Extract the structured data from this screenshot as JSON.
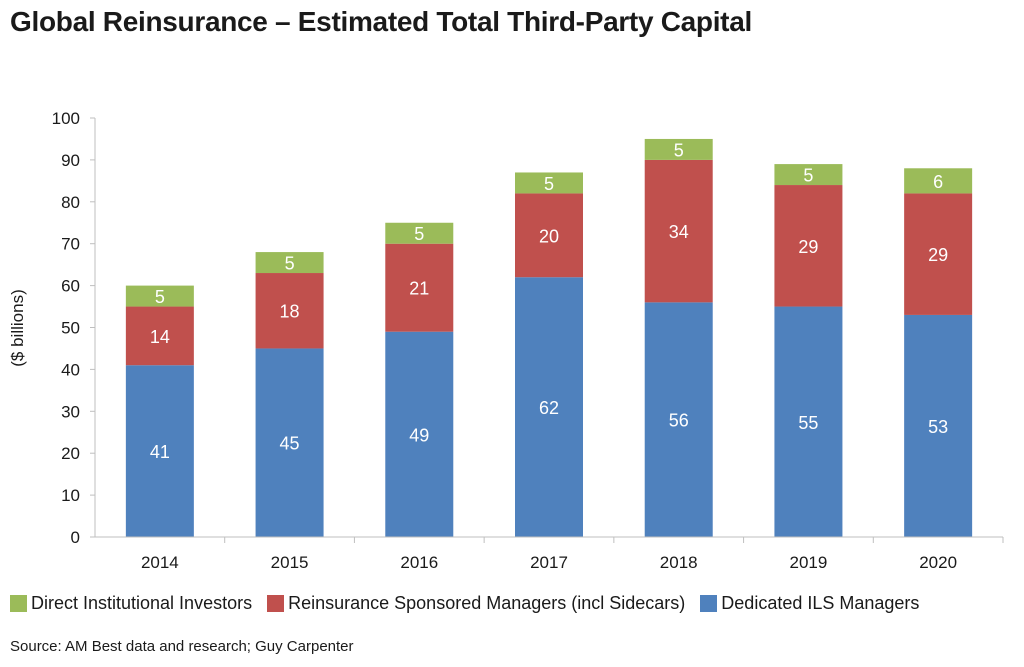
{
  "title": "Global Reinsurance – Estimated Total Third-Party Capital",
  "source": "Source: AM Best data and research; Guy Carpenter",
  "chart_data": {
    "type": "bar",
    "stacked": true,
    "categories": [
      "2014",
      "2015",
      "2016",
      "2017",
      "2018",
      "2019",
      "2020"
    ],
    "series": [
      {
        "name": "Dedicated ILS Managers",
        "values": [
          41,
          45,
          49,
          62,
          56,
          55,
          53
        ],
        "color": "#4f81bd"
      },
      {
        "name": "Reinsurance Sponsored Managers (incl Sidecars)",
        "values": [
          14,
          18,
          21,
          20,
          34,
          29,
          29
        ],
        "color": "#c0504d"
      },
      {
        "name": "Direct Institutional Investors",
        "values": [
          5,
          5,
          5,
          5,
          5,
          5,
          6
        ],
        "color": "#9bbb59"
      }
    ],
    "legend_order": [
      "Direct Institutional Investors",
      "Reinsurance Sponsored Managers (incl Sidecars)",
      "Dedicated ILS Managers"
    ],
    "ylabel": "($ billions)",
    "xlabel": "",
    "ylim": [
      0,
      100
    ],
    "yticks": [
      0,
      10,
      20,
      30,
      40,
      50,
      60,
      70,
      80,
      90,
      100
    ],
    "grid": false,
    "legend_position": "bottom"
  }
}
